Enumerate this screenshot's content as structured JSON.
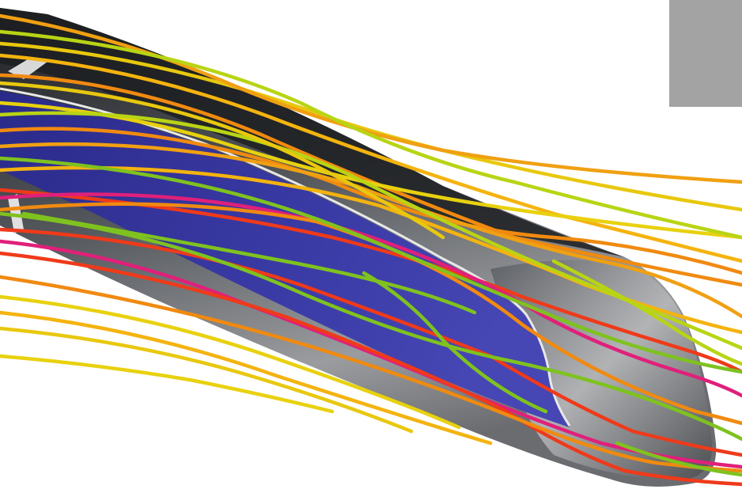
{
  "scene": {
    "subject": "streamlines-around-vehicle-nose",
    "background_color": "#ffffff",
    "body_color": "#3b3d42",
    "body_highlight_color": "#c9c9c9",
    "window_color": "#33339a",
    "window_trim_color": "#e8e8e8",
    "panel_color": "#a3a3a3",
    "streamline_palette": [
      "#7fc21f",
      "#b9d414",
      "#e8d10f",
      "#f4b30f",
      "#f08a10",
      "#ef3a1a",
      "#e0207a"
    ]
  }
}
